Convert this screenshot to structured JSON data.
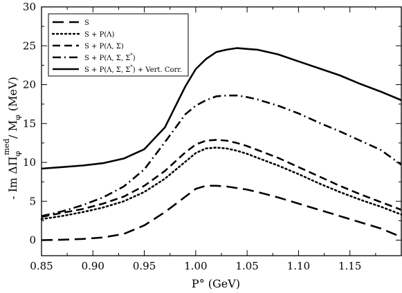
{
  "chart_data": {
    "type": "line",
    "title": "",
    "xlabel": "P° (GeV)",
    "ylabel_parts": {
      "prefix": "- Im  ΔΠ",
      "sub1": "φ",
      "sup1": "med",
      "slash": "/ M",
      "sub2": "φ",
      "unit": " (MeV)"
    },
    "xlim": [
      0.85,
      1.2
    ],
    "ylim": [
      -2,
      30
    ],
    "xticks": [
      0.85,
      0.9,
      0.95,
      1.0,
      1.05,
      1.1,
      1.15
    ],
    "xtick_labels": [
      "0.85",
      "0.90",
      "0.95",
      "1.00",
      "1.05",
      "1.10",
      "1.15"
    ],
    "yticks": [
      0,
      5,
      10,
      15,
      20,
      25,
      30
    ],
    "ytick_labels": [
      "0",
      "5",
      "10",
      "15",
      "20",
      "25",
      "30"
    ],
    "grid": false,
    "legend_position": "top-left",
    "x": [
      0.85,
      0.87,
      0.89,
      0.91,
      0.93,
      0.95,
      0.97,
      0.99,
      1.0,
      1.01,
      1.02,
      1.03,
      1.04,
      1.05,
      1.06,
      1.08,
      1.1,
      1.12,
      1.14,
      1.16,
      1.18,
      1.2
    ],
    "series": [
      {
        "name": "S",
        "dash": "long",
        "values": [
          0.0,
          0.05,
          0.15,
          0.35,
          0.8,
          1.9,
          3.6,
          5.6,
          6.6,
          7.0,
          7.0,
          6.9,
          6.7,
          6.5,
          6.2,
          5.5,
          4.7,
          3.9,
          3.1,
          2.3,
          1.5,
          0.4
        ]
      },
      {
        "name": "S + P(Λ)",
        "dash": "dot",
        "values": [
          2.7,
          3.1,
          3.6,
          4.2,
          5.0,
          6.2,
          7.9,
          10.1,
          11.2,
          11.8,
          11.9,
          11.8,
          11.5,
          11.1,
          10.6,
          9.6,
          8.5,
          7.3,
          6.2,
          5.2,
          4.3,
          3.3
        ]
      },
      {
        "name": "S + P(Λ, Σ)",
        "dash": "medium",
        "values": [
          3.0,
          3.5,
          4.0,
          4.7,
          5.6,
          7.0,
          8.9,
          11.3,
          12.3,
          12.8,
          12.9,
          12.8,
          12.5,
          12.1,
          11.6,
          10.6,
          9.4,
          8.2,
          7.0,
          5.9,
          4.9,
          3.9
        ]
      },
      {
        "name": "S + P(Λ, Σ, Σ*)",
        "dash": "dashdot",
        "values": [
          3.1,
          3.7,
          4.5,
          5.5,
          6.9,
          9.1,
          12.6,
          16.2,
          17.3,
          18.0,
          18.5,
          18.6,
          18.6,
          18.4,
          18.1,
          17.3,
          16.3,
          15.1,
          14.0,
          12.8,
          11.6,
          9.7
        ]
      },
      {
        "name": "S + P(Λ, Σ, Σ*) + Vert. Corr.",
        "dash": "solid",
        "values": [
          9.2,
          9.4,
          9.6,
          9.9,
          10.5,
          11.7,
          14.5,
          19.8,
          22.0,
          23.3,
          24.2,
          24.5,
          24.7,
          24.6,
          24.5,
          23.9,
          23.0,
          22.1,
          21.2,
          20.1,
          19.1,
          18.0
        ]
      }
    ],
    "legend_labels": [
      {
        "base": "S",
        "sup": ""
      },
      {
        "base": "S + P(Λ)",
        "sup": ""
      },
      {
        "base": "S + P(Λ, Σ)",
        "sup": ""
      },
      {
        "base": "S + P(Λ, Σ, Σ",
        "sup": "*",
        "close": ")",
        "tail": ""
      },
      {
        "base": "S + P(Λ, Σ, Σ",
        "sup": "*",
        "close": ")",
        "tail": " + Vert. Corr."
      }
    ]
  }
}
